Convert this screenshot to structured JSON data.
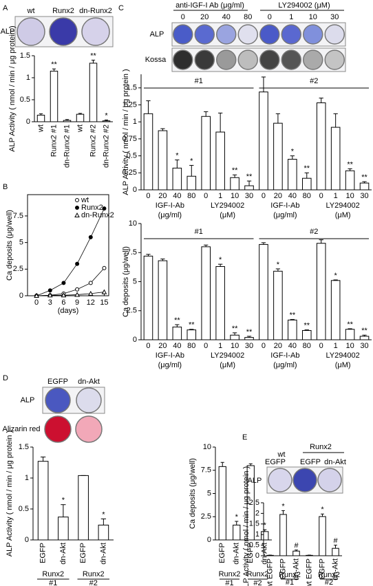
{
  "chart_data": [
    {
      "panel": "A",
      "type": "bar",
      "image_labels": [
        "wt",
        "Runx2",
        "dn-Runx2"
      ],
      "image_rows": [
        "ALP"
      ],
      "ylabel": "ALP Activity ( nmol / min / μg protein )",
      "categories": [
        "wt",
        "Runx2 #1",
        "dn-Runx2 #1",
        "wt",
        "Runx2 #2",
        "dn-Runx2 #2"
      ],
      "values": [
        0.15,
        1.15,
        0.03,
        0.17,
        1.33,
        0.02
      ],
      "errors": [
        0.03,
        0.05,
        0.02,
        0.02,
        0.07,
        0.02
      ],
      "annotations": [
        null,
        "**",
        null,
        null,
        "**",
        "*"
      ],
      "color": "#ffffff",
      "ylim": [
        0,
        1.5
      ],
      "yticks": [
        0,
        0.5,
        1,
        1.5
      ]
    },
    {
      "panel": "B",
      "type": "line",
      "ylabel": "Ca deposits (μg/well)",
      "xlabel": "(days)",
      "x": [
        0,
        3,
        6,
        9,
        12,
        15
      ],
      "xlim": [
        -2,
        16
      ],
      "xticks": [
        0,
        3,
        6,
        9,
        12,
        15
      ],
      "ylim": [
        0,
        9.5
      ],
      "yticks": [
        0,
        2.5,
        5,
        7.5
      ],
      "legend": "upper right",
      "series": [
        {
          "name": "wt",
          "color": "#000000",
          "marker": "circle-open",
          "values": [
            0,
            0.05,
            0.2,
            0.6,
            1.2,
            2.6
          ]
        },
        {
          "name": "Runx2",
          "color": "#000000",
          "marker": "circle",
          "values": [
            0,
            0.5,
            1.2,
            3,
            5.5,
            8.2
          ]
        },
        {
          "name": "dn-Runx2",
          "color": "#000000",
          "marker": "triangle-open",
          "values": [
            0,
            0.05,
            0.05,
            0.1,
            0.2,
            0.35
          ]
        }
      ]
    },
    {
      "panel": "C",
      "type": "bar",
      "image_header": [
        "anti-IGF-I Ab (μg/ml)",
        "LY294002 (μM)"
      ],
      "image_labels": [
        "0",
        "20",
        "40",
        "80",
        "0",
        "1",
        "10",
        "30"
      ],
      "image_rows": [
        "ALP",
        "Kossa"
      ],
      "ylabel": "ALP Activity ( nmol / min / μg protein )",
      "super_groups": [
        "#1",
        "#2"
      ],
      "group_labels": [
        "IGF-I-Ab",
        "LY294002",
        "IGF-I-Ab",
        "LY294002"
      ],
      "group_sublabels": [
        "(μg/ml)",
        "(μM)",
        "(μg/ml)",
        "(μM)"
      ],
      "categories": [
        "0",
        "20",
        "40",
        "80",
        "0",
        "1",
        "10",
        "30",
        "0",
        "20",
        "40",
        "80",
        "0",
        "1",
        "10",
        "30"
      ],
      "values": [
        1.12,
        0.87,
        0.32,
        0.2,
        1.08,
        0.85,
        0.18,
        0.06,
        1.44,
        0.98,
        0.45,
        0.17,
        1.28,
        0.92,
        0.28,
        0.1
      ],
      "errors": [
        0.19,
        0.03,
        0.12,
        0.16,
        0.07,
        0.28,
        0.04,
        0.07,
        0.22,
        0.14,
        0.05,
        0.08,
        0.07,
        0.2,
        0.03,
        0.02
      ],
      "annotations": [
        null,
        null,
        "*",
        "*",
        null,
        null,
        "**",
        "**",
        null,
        null,
        "*",
        "**",
        null,
        null,
        "**",
        "**"
      ],
      "color": "#ffffff",
      "ylim": [
        0,
        1.7
      ],
      "yticks": [
        0,
        0.25,
        0.5,
        0.75,
        1,
        1.25,
        1.5
      ]
    },
    {
      "type": "bar",
      "ylabel": "Ca deposits (μg/well)",
      "super_groups": [
        "#1",
        "#2"
      ],
      "group_labels": [
        "IGF-I-Ab",
        "LY294002",
        "IGF-I-Ab",
        "LY294002"
      ],
      "group_sublabels": [
        "(μg/ml)",
        "(μM)",
        "(μg/ml)",
        "(μM)"
      ],
      "categories": [
        "0",
        "20",
        "40",
        "80",
        "0",
        "1",
        "10",
        "30",
        "0",
        "20",
        "40",
        "80",
        "0",
        "1",
        "10",
        "30"
      ],
      "values": [
        7.2,
        6.8,
        1.1,
        0.85,
        8.0,
        6.3,
        0.4,
        0.2,
        8.2,
        5.9,
        1.7,
        0.8,
        8.3,
        5.1,
        0.9,
        0.3
      ],
      "errors": [
        0.15,
        0.15,
        0.2,
        0.05,
        0.15,
        0.2,
        0.2,
        0.1,
        0.15,
        0.2,
        0.05,
        0.05,
        0.3,
        0.05,
        0.05,
        0.1
      ],
      "annotations": [
        null,
        null,
        "**",
        "**",
        null,
        "*",
        "**",
        "**",
        null,
        "*",
        "**",
        "**",
        null,
        "*",
        "**",
        "**"
      ],
      "color": "#ffffff",
      "ylim": [
        0,
        10
      ],
      "yticks": [
        0,
        2.5,
        5,
        7.5,
        10
      ]
    },
    {
      "panel": "D",
      "type": "bar",
      "image_labels": [
        "EGFP",
        "dn-Akt"
      ],
      "image_rows": [
        "ALP",
        "Alizarin red"
      ],
      "ylabel": "ALP Activity ( nmol / min / μg protein )",
      "categories": [
        "EGFP",
        "dn-Akt",
        "EGFP",
        "dn-Akt"
      ],
      "group_labels": [
        "Runx2",
        "Runx2"
      ],
      "group_sublabels": [
        "#1",
        "#2"
      ],
      "values": [
        1.27,
        0.37,
        1.04,
        0.24
      ],
      "errors": [
        0.07,
        0.2,
        0,
        0.1
      ],
      "annotations": [
        null,
        "*",
        null,
        "*"
      ],
      "color": "#ffffff",
      "ylim": [
        0,
        1.5
      ],
      "yticks": [
        0,
        0.5,
        1,
        1.5
      ]
    },
    {
      "type": "bar",
      "ylabel": "Ca deposits (μg/well)",
      "categories": [
        "EGFP",
        "dn-Akt",
        "EGFP",
        "dn-Akt"
      ],
      "group_labels": [
        "Runx2",
        "Runx2"
      ],
      "group_sublabels": [
        "#1",
        "#2"
      ],
      "values": [
        7.9,
        1.6,
        8.0,
        0.9
      ],
      "errors": [
        0.45,
        0.4,
        0.2,
        0.2
      ],
      "annotations": [
        null,
        "*",
        null,
        "*"
      ],
      "color": "#ffffff",
      "ylim": [
        0,
        10
      ],
      "yticks": [
        0,
        2.5,
        5,
        7.5,
        10
      ]
    },
    {
      "panel": "E",
      "type": "bar",
      "image_header": [
        "Runx2"
      ],
      "image_labels": [
        "wt",
        "EGFP",
        "EGFP",
        "dn-Akt"
      ],
      "image_rows": [
        "ALP"
      ],
      "ylabel": "ALP Activity ( nmol / min / μg protein )",
      "categories": [
        "wt EGFP",
        "EGFP",
        "dn-Akt",
        "wt EGFP",
        "EGFP",
        "dn-Akt"
      ],
      "group_labels": [
        "Runx2",
        "Runx2"
      ],
      "group_sublabels": [
        "#1",
        "#2"
      ],
      "values": [
        0.02,
        1.95,
        0.22,
        0.02,
        1.85,
        0.35
      ],
      "errors": [
        0.01,
        0.18,
        0.05,
        0.01,
        0.12,
        0.15
      ],
      "annotations": [
        null,
        "*",
        "#",
        null,
        "*",
        "#"
      ],
      "color": "#ffffff",
      "ylim": [
        0,
        2.5
      ],
      "yticks": [
        0,
        0.5,
        1,
        1.5,
        2,
        2.5
      ]
    }
  ]
}
